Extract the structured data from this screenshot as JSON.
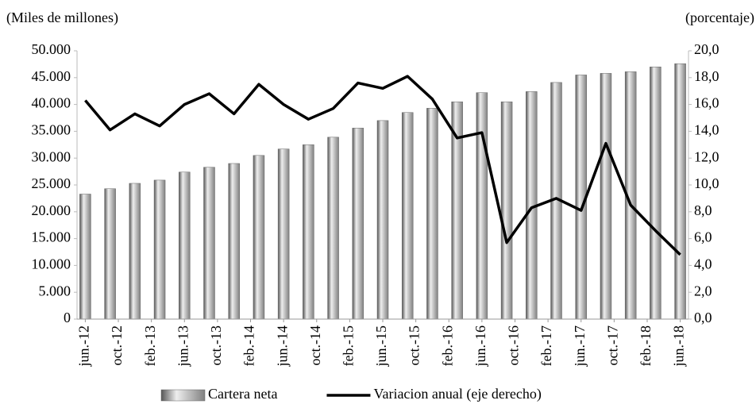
{
  "chart_data": {
    "type": "bar",
    "y_label": "(Miles de millones)",
    "y2_label": "(porcentaje)",
    "x": [
      "2012-06",
      "2012-09",
      "2012-12",
      "2013-03",
      "2013-06",
      "2013-09",
      "2013-12",
      "2014-03",
      "2014-06",
      "2014-09",
      "2014-12",
      "2015-03",
      "2015-06",
      "2015-09",
      "2015-12",
      "2016-03",
      "2016-06",
      "2016-09",
      "2016-12",
      "2017-03",
      "2017-06",
      "2017-09",
      "2017-12",
      "2018-03",
      "2018-06"
    ],
    "xticks": [
      {
        "value": "2012-06",
        "label": "jun.-12"
      },
      {
        "value": "2012-10",
        "label": "oct.-12"
      },
      {
        "value": "2013-02",
        "label": "feb.-13"
      },
      {
        "value": "2013-06",
        "label": "jun.-13"
      },
      {
        "value": "2013-10",
        "label": "oct.-13"
      },
      {
        "value": "2014-02",
        "label": "feb.-14"
      },
      {
        "value": "2014-06",
        "label": "jun.-14"
      },
      {
        "value": "2014-10",
        "label": "oct.-14"
      },
      {
        "value": "2015-02",
        "label": "feb.-15"
      },
      {
        "value": "2015-06",
        "label": "jun.-15"
      },
      {
        "value": "2015-10",
        "label": "oct.-15"
      },
      {
        "value": "2016-02",
        "label": "feb.-16"
      },
      {
        "value": "2016-06",
        "label": "jun.-16"
      },
      {
        "value": "2016-10",
        "label": "oct.-16"
      },
      {
        "value": "2017-02",
        "label": "feb.-17"
      },
      {
        "value": "2017-06",
        "label": "jun.-17"
      },
      {
        "value": "2017-10",
        "label": "oct.-17"
      },
      {
        "value": "2018-02",
        "label": "feb.-18"
      },
      {
        "value": "2018-06",
        "label": "jun.-18"
      }
    ],
    "series": [
      {
        "name": "Cartera neta",
        "type": "bar",
        "color": "#808080",
        "values": [
          23300,
          24300,
          25300,
          25900,
          27400,
          28300,
          29000,
          30500,
          31700,
          32500,
          33900,
          35600,
          37000,
          38500,
          39300,
          40500,
          42200,
          40500,
          42400,
          44100,
          45500,
          45800,
          46100,
          47000,
          47600
        ]
      },
      {
        "name": "Variacion anual (eje derecho)",
        "type": "line",
        "color": "#000000",
        "axis": "y2",
        "values": [
          16.3,
          14.1,
          15.3,
          14.4,
          16.0,
          16.8,
          15.3,
          17.5,
          16.0,
          14.9,
          15.7,
          17.6,
          17.2,
          18.1,
          16.4,
          13.5,
          13.9,
          5.7,
          8.3,
          9.0,
          8.1,
          13.1,
          8.5,
          6.6,
          4.8
        ]
      }
    ],
    "ylim": [
      0,
      50000
    ],
    "yticks": [
      0,
      {
        "value": 5000,
        "label": "5.000"
      },
      {
        "value": 10000,
        "label": "10.000"
      },
      {
        "value": 15000,
        "label": "15.000"
      },
      {
        "value": 20000,
        "label": "20.000"
      },
      {
        "value": 25000,
        "label": "25.000"
      },
      {
        "value": 30000,
        "label": "30.000"
      },
      {
        "value": 35000,
        "label": "35.000"
      },
      {
        "value": 40000,
        "label": "40.000"
      },
      {
        "value": 45000,
        "label": "45.000"
      },
      {
        "value": 50000,
        "label": "50.000"
      }
    ],
    "y2lim": [
      0,
      20
    ],
    "y2ticks": [
      {
        "value": 0,
        "label": "0,0"
      },
      {
        "value": 2,
        "label": "2,0"
      },
      {
        "value": 4,
        "label": "4,0"
      },
      {
        "value": 6,
        "label": "6,0"
      },
      {
        "value": 8,
        "label": "8,0"
      },
      {
        "value": 10,
        "label": "10,0"
      },
      {
        "value": 12,
        "label": "12,0"
      },
      {
        "value": 14,
        "label": "14,0"
      },
      {
        "value": 16,
        "label": "16,0"
      },
      {
        "value": 18,
        "label": "18,0"
      },
      {
        "value": 20,
        "label": "20,0"
      }
    ],
    "legend": "bottom",
    "grid": false
  }
}
